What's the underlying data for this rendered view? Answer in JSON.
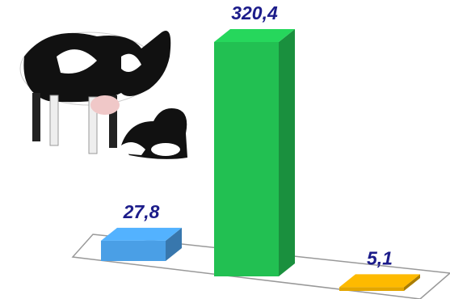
{
  "chart_data": {
    "type": "bar3d",
    "categories": [
      null,
      null,
      null
    ],
    "values": [
      27.8,
      320.4,
      5.1
    ],
    "value_labels": [
      "27,8",
      "320,4",
      "5,1"
    ],
    "colors": [
      "#4a9fe6",
      "#22c052",
      "#e3a600"
    ]
  }
}
